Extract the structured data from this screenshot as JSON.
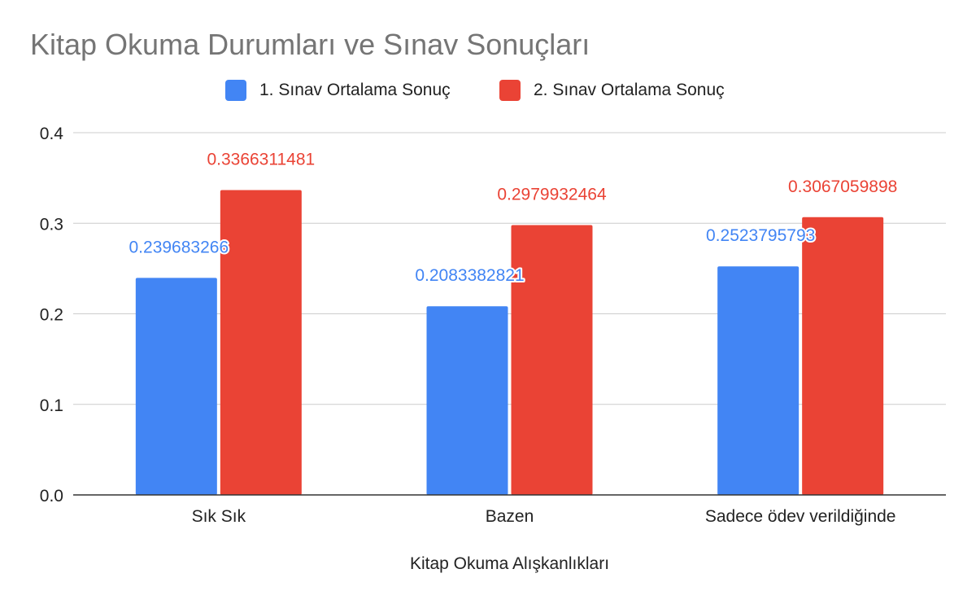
{
  "chart_data": {
    "type": "bar",
    "title": "Kitap Okuma Durumları ve Sınav Sonuçları",
    "xlabel": "Kitap Okuma Alışkanlıkları",
    "ylabel": "",
    "ylim": [
      0,
      0.4
    ],
    "yticks": [
      "0.0",
      "0.1",
      "0.2",
      "0.3",
      "0.4"
    ],
    "grid": true,
    "legend_position": "top",
    "categories": [
      "Sık Sık",
      "Bazen",
      "Sadece ödev verildiğinde"
    ],
    "series": [
      {
        "name": "1. Sınav Ortalama Sonuç",
        "color": "#4285f4",
        "values": [
          0.239683266,
          0.2083382821,
          0.2523795793
        ],
        "labels": [
          "0.239683266",
          "0.2083382821",
          "0.2523795793"
        ]
      },
      {
        "name": "2. Sınav Ortalama Sonuç",
        "color": "#ea4335",
        "values": [
          0.3366311481,
          0.2979932464,
          0.3067059898
        ],
        "labels": [
          "0.3366311481",
          "0.2979932464",
          "0.3067059898"
        ]
      }
    ]
  }
}
